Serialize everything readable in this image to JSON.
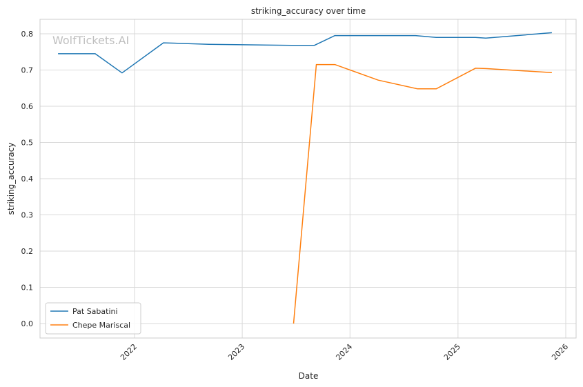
{
  "watermark": "WolfTickets.AI",
  "chart_data": {
    "type": "line",
    "title": "striking_accuracy over time",
    "xlabel": "Date",
    "ylabel": "striking_accuracy",
    "x_ticks": [
      "2022",
      "2023",
      "2024",
      "2025",
      "2026"
    ],
    "y_ticks": [
      "0.0",
      "0.1",
      "0.2",
      "0.3",
      "0.4",
      "0.5",
      "0.6",
      "0.7",
      "0.8"
    ],
    "xlim": [
      "2021-02-15",
      "2026-02-05"
    ],
    "ylim": [
      -0.04,
      0.84
    ],
    "grid": true,
    "legend_position": "lower-left",
    "series": [
      {
        "name": "Pat Sabatini",
        "color": "#1f77b4",
        "points": [
          [
            "2021-04-17",
            0.745
          ],
          [
            "2021-08-21",
            0.745
          ],
          [
            "2021-11-20",
            0.692
          ],
          [
            "2022-04-09",
            0.775
          ],
          [
            "2022-09-10",
            0.771
          ],
          [
            "2023-06-17",
            0.768
          ],
          [
            "2023-09-02",
            0.768
          ],
          [
            "2023-11-11",
            0.795
          ],
          [
            "2024-08-10",
            0.795
          ],
          [
            "2024-10-19",
            0.79
          ],
          [
            "2025-03-01",
            0.79
          ],
          [
            "2025-04-05",
            0.788
          ],
          [
            "2025-11-15",
            0.803
          ]
        ]
      },
      {
        "name": "Chepe Mariscal",
        "color": "#ff7f0e",
        "points": [
          [
            "2023-06-24",
            0.0
          ],
          [
            "2023-09-09",
            0.715
          ],
          [
            "2023-11-11",
            0.715
          ],
          [
            "2024-04-06",
            0.672
          ],
          [
            "2024-08-17",
            0.648
          ],
          [
            "2024-10-19",
            0.648
          ],
          [
            "2025-03-01",
            0.705
          ],
          [
            "2025-04-05",
            0.704
          ],
          [
            "2025-11-15",
            0.693
          ]
        ]
      }
    ]
  }
}
